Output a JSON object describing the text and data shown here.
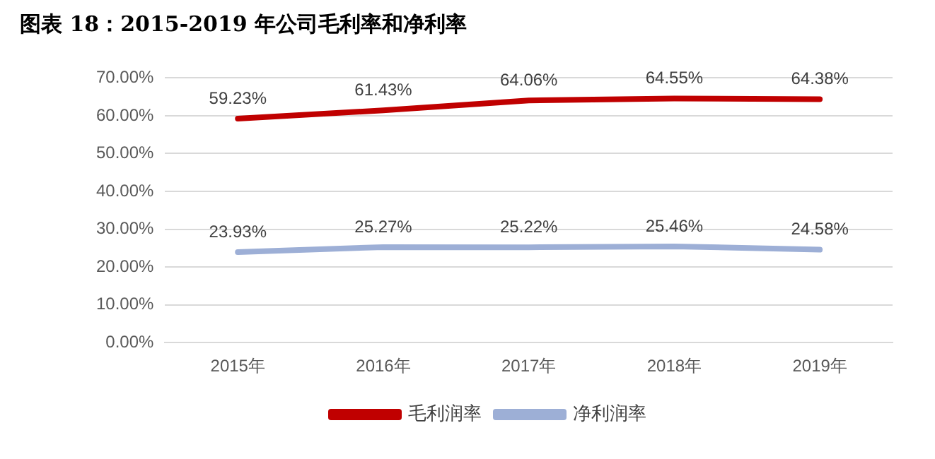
{
  "chart_data": {
    "type": "line",
    "title": "图表 18：2015-2019 年公司毛利率和净利率",
    "categories": [
      "2015年",
      "2016年",
      "2017年",
      "2018年",
      "2019年"
    ],
    "series": [
      {
        "name": "毛利润率",
        "color": "#c00000",
        "values": [
          59.23,
          61.43,
          64.06,
          64.55,
          64.38
        ],
        "value_labels": [
          "59.23%",
          "61.43%",
          "64.06%",
          "64.55%",
          "64.38%"
        ]
      },
      {
        "name": "净利润率",
        "color": "#9dafd6",
        "values": [
          23.93,
          25.27,
          25.22,
          25.46,
          24.58
        ],
        "value_labels": [
          "23.93%",
          "25.27%",
          "25.22%",
          "25.46%",
          "24.58%"
        ]
      }
    ],
    "ylim": [
      0,
      70
    ],
    "yticks": [
      {
        "value": 0,
        "label": "0.00%"
      },
      {
        "value": 10,
        "label": "10.00%"
      },
      {
        "value": 20,
        "label": "20.00%"
      },
      {
        "value": 30,
        "label": "30.00%"
      },
      {
        "value": 40,
        "label": "40.00%"
      },
      {
        "value": 50,
        "label": "50.00%"
      },
      {
        "value": 60,
        "label": "60.00%"
      },
      {
        "value": 70,
        "label": "70.00%"
      }
    ],
    "grid": "y",
    "legend": "bottom",
    "marker": "none",
    "line_style": "solid"
  }
}
